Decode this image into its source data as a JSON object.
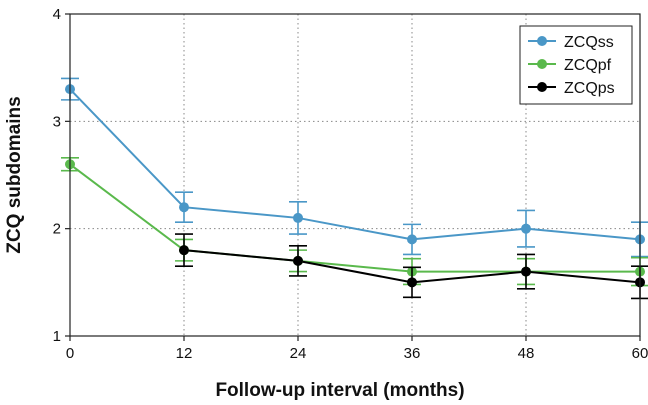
{
  "chart_data": {
    "type": "line",
    "xlabel": "Follow-up interval (months)",
    "ylabel": "ZCQ subdomains",
    "x": [
      0,
      12,
      24,
      36,
      48,
      60
    ],
    "xticks": [
      "0",
      "12",
      "24",
      "36",
      "48",
      "60"
    ],
    "yticks": [
      "1",
      "2",
      "3",
      "4"
    ],
    "xlim": [
      0,
      60
    ],
    "ylim": [
      1,
      4
    ],
    "grid": "dotted",
    "legend": "top-right",
    "series": [
      {
        "name": "ZCQss",
        "color": "#4a97c7",
        "values": [
          3.3,
          2.2,
          2.1,
          1.9,
          2.0,
          1.9
        ],
        "error": [
          0.1,
          0.14,
          0.15,
          0.14,
          0.17,
          0.16
        ]
      },
      {
        "name": "ZCQpf",
        "color": "#5ab94c",
        "values": [
          2.6,
          1.8,
          1.7,
          1.6,
          1.6,
          1.6
        ],
        "error": [
          0.06,
          0.1,
          0.1,
          0.12,
          0.12,
          0.13
        ]
      },
      {
        "name": "ZCQps",
        "color": "#000000",
        "values": [
          null,
          1.8,
          1.7,
          1.5,
          1.6,
          1.5
        ],
        "error": [
          null,
          0.15,
          0.14,
          0.14,
          0.16,
          0.15
        ]
      }
    ]
  }
}
